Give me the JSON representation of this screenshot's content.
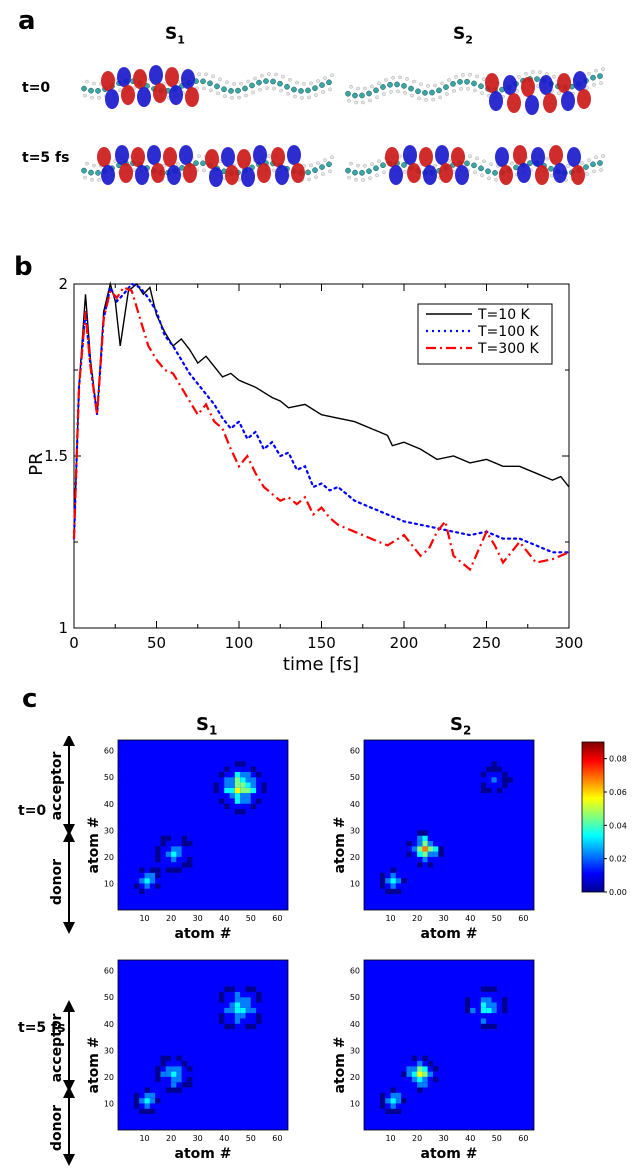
{
  "panel_a": {
    "letter": "a",
    "col_labels": [
      {
        "base": "S",
        "sub": "1"
      },
      {
        "base": "S",
        "sub": "2"
      }
    ],
    "row_labels": [
      "t=0",
      "t=5 fs"
    ]
  },
  "panel_b": {
    "letter": "b"
  },
  "panel_c": {
    "letter": "c",
    "col_labels": [
      {
        "base": "S",
        "sub": "1"
      },
      {
        "base": "S",
        "sub": "2"
      }
    ],
    "row_labels": [
      "t=0",
      "t=5 fs"
    ],
    "side_labels": {
      "top": "acceptor",
      "bottom": "donor"
    },
    "axis_label": "atom #",
    "heat_ticks": [
      "10",
      "20",
      "30",
      "40",
      "50",
      "60"
    ],
    "colorbar": {
      "ticks": [
        "0.00",
        "0.02",
        "0.04",
        "0.06",
        "0.08"
      ],
      "min": 0,
      "max": 0.09,
      "colors": [
        "#00008f",
        "#0000ff",
        "#0080ff",
        "#00ffff",
        "#80ff80",
        "#ffff00",
        "#ff8000",
        "#ff0000",
        "#800000"
      ]
    }
  },
  "chart_data": {
    "type": "line",
    "xlabel": "time [fs]",
    "ylabel": "PR",
    "xlim": [
      0,
      300
    ],
    "ylim": [
      1,
      2
    ],
    "xticks": [
      "0",
      "50",
      "100",
      "150",
      "200",
      "250",
      "300"
    ],
    "yticks": [
      "1",
      "1.5",
      "2"
    ],
    "legend_position": "top-right",
    "series": [
      {
        "name": "T=10 K",
        "color": "#000000",
        "style": "solid",
        "x": [
          0,
          3,
          7,
          10,
          14,
          18,
          22,
          25,
          28,
          33,
          38,
          42,
          46,
          50,
          55,
          60,
          65,
          70,
          75,
          80,
          85,
          90,
          95,
          100,
          110,
          120,
          125,
          130,
          140,
          150,
          160,
          170,
          180,
          185,
          190,
          193,
          200,
          210,
          220,
          230,
          240,
          250,
          260,
          270,
          280,
          290,
          295,
          300
        ],
        "y": [
          1.26,
          1.7,
          1.97,
          1.78,
          1.62,
          1.92,
          2.0,
          1.95,
          1.82,
          1.98,
          2.0,
          1.97,
          1.99,
          1.91,
          1.86,
          1.82,
          1.84,
          1.81,
          1.77,
          1.79,
          1.76,
          1.73,
          1.74,
          1.72,
          1.7,
          1.67,
          1.66,
          1.64,
          1.65,
          1.62,
          1.61,
          1.6,
          1.58,
          1.57,
          1.56,
          1.53,
          1.54,
          1.52,
          1.49,
          1.5,
          1.48,
          1.49,
          1.47,
          1.47,
          1.45,
          1.43,
          1.44,
          1.41
        ]
      },
      {
        "name": "T=100 K",
        "color": "#0000ff",
        "style": "dotted",
        "x": [
          0,
          3,
          7,
          10,
          14,
          18,
          22,
          26,
          30,
          35,
          40,
          45,
          50,
          55,
          60,
          65,
          70,
          75,
          80,
          85,
          90,
          95,
          100,
          105,
          110,
          115,
          120,
          125,
          130,
          135,
          140,
          145,
          150,
          155,
          160,
          165,
          170,
          180,
          190,
          200,
          210,
          220,
          230,
          240,
          250,
          260,
          270,
          280,
          290,
          300
        ],
        "y": [
          1.26,
          1.7,
          1.92,
          1.76,
          1.62,
          1.9,
          1.99,
          1.95,
          1.97,
          2.0,
          1.99,
          1.96,
          1.92,
          1.85,
          1.82,
          1.78,
          1.74,
          1.71,
          1.68,
          1.65,
          1.61,
          1.58,
          1.6,
          1.55,
          1.57,
          1.52,
          1.54,
          1.5,
          1.51,
          1.46,
          1.47,
          1.41,
          1.42,
          1.4,
          1.41,
          1.39,
          1.37,
          1.35,
          1.33,
          1.31,
          1.3,
          1.29,
          1.28,
          1.27,
          1.28,
          1.26,
          1.26,
          1.24,
          1.22,
          1.22
        ]
      },
      {
        "name": "T=300 K",
        "color": "#ff0000",
        "style": "dashdot",
        "x": [
          0,
          3,
          7,
          10,
          14,
          18,
          22,
          26,
          30,
          35,
          40,
          45,
          50,
          55,
          60,
          65,
          70,
          75,
          80,
          85,
          90,
          95,
          100,
          105,
          110,
          115,
          120,
          125,
          130,
          135,
          140,
          145,
          150,
          155,
          160,
          170,
          180,
          190,
          200,
          210,
          215,
          220,
          225,
          230,
          240,
          250,
          255,
          260,
          270,
          280,
          290,
          300
        ],
        "y": [
          1.26,
          1.7,
          1.92,
          1.76,
          1.62,
          1.9,
          1.98,
          1.96,
          1.99,
          1.98,
          1.9,
          1.82,
          1.78,
          1.75,
          1.74,
          1.7,
          1.66,
          1.62,
          1.65,
          1.6,
          1.58,
          1.52,
          1.47,
          1.5,
          1.45,
          1.41,
          1.39,
          1.37,
          1.38,
          1.36,
          1.38,
          1.33,
          1.35,
          1.32,
          1.3,
          1.28,
          1.26,
          1.24,
          1.27,
          1.21,
          1.23,
          1.28,
          1.31,
          1.21,
          1.17,
          1.28,
          1.24,
          1.19,
          1.25,
          1.19,
          1.2,
          1.22
        ]
      }
    ]
  }
}
